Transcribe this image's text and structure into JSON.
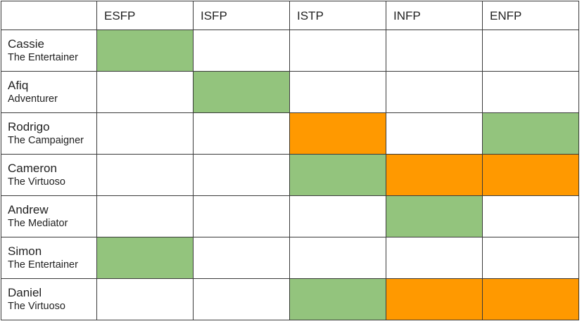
{
  "columns": [
    "ESFP",
    "ISFP",
    "ISTP",
    "INFP",
    "ENFP"
  ],
  "legend_colors": {
    "green": "#93c47d",
    "orange": "#ff9900",
    "empty": "#ffffff"
  },
  "rows": [
    {
      "name": "Cassie",
      "type": "The Entertainer",
      "cells": [
        "green",
        "empty",
        "empty",
        "empty",
        "empty"
      ]
    },
    {
      "name": "Afiq",
      "type": "Adventurer",
      "cells": [
        "empty",
        "green",
        "empty",
        "empty",
        "empty"
      ]
    },
    {
      "name": "Rodrigo",
      "type": "The Campaigner",
      "cells": [
        "empty",
        "empty",
        "orange",
        "empty",
        "green"
      ]
    },
    {
      "name": "Cameron",
      "type": "The Virtuoso",
      "cells": [
        "empty",
        "empty",
        "green",
        "orange",
        "orange"
      ]
    },
    {
      "name": "Andrew",
      "type": "The Mediator",
      "cells": [
        "empty",
        "empty",
        "empty",
        "green",
        "empty"
      ]
    },
    {
      "name": "Simon",
      "type": "The Entertainer",
      "cells": [
        "green",
        "empty",
        "empty",
        "empty",
        "empty"
      ]
    },
    {
      "name": "Daniel",
      "type": "The Virtuoso",
      "cells": [
        "empty",
        "empty",
        "green",
        "orange",
        "orange"
      ]
    }
  ]
}
